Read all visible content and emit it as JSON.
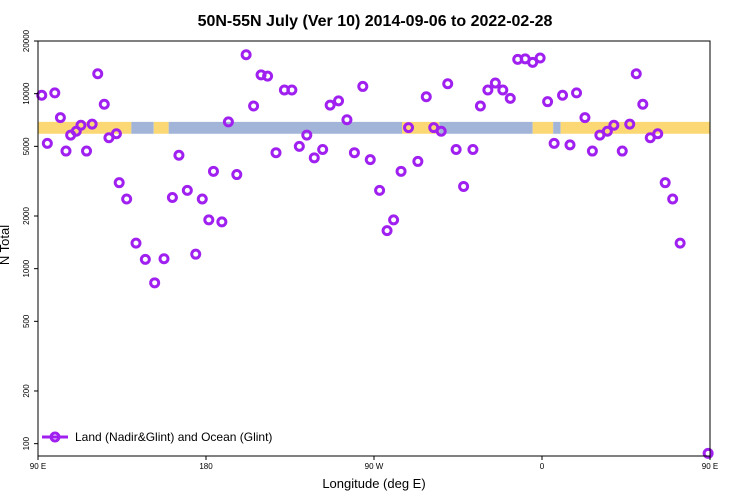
{
  "chart_data": {
    "type": "scatter",
    "title": "50N-55N July (Ver 10)   2014-09-06 to 2022-02-28",
    "xlabel": "Longitude (deg E)",
    "ylabel": "N Total",
    "y_scale": "log",
    "xlim": [
      90,
      450
    ],
    "ylim": [
      85,
      20000
    ],
    "x_ticks": [
      {
        "value": 90,
        "label": "90 E"
      },
      {
        "value": 180,
        "label": "180"
      },
      {
        "value": 270,
        "label": "90 W"
      },
      {
        "value": 360,
        "label": "0"
      },
      {
        "value": 450,
        "label": "90 E"
      },
      {
        "value": 540,
        "label": "180"
      }
    ],
    "y_ticks": [
      {
        "value": 100,
        "label": "100"
      },
      {
        "value": 200,
        "label": "200"
      },
      {
        "value": 500,
        "label": "500"
      },
      {
        "value": 1000,
        "label": "1000"
      },
      {
        "value": 2000,
        "label": "2000"
      },
      {
        "value": 5000,
        "label": "5000"
      },
      {
        "value": 10000,
        "label": "10000"
      },
      {
        "value": 20000,
        "label": "20000"
      }
    ],
    "colors": {
      "marker": "#a020f0",
      "land": "#fcd875",
      "ocean": "#a2b5d8"
    },
    "legend": {
      "placement": "bottom-left",
      "entries": [
        "Land (Nadir&Glint) and Ocean (Glint)"
      ]
    },
    "land_ocean_band": {
      "y_range": [
        5900,
        6900
      ],
      "segments": [
        {
          "type": "land",
          "x": [
            90,
            140
          ]
        },
        {
          "type": "ocean",
          "x": [
            140,
            152
          ]
        },
        {
          "type": "land",
          "x": [
            152,
            160
          ]
        },
        {
          "type": "ocean",
          "x": [
            160,
            285
          ]
        },
        {
          "type": "land",
          "x": [
            285,
            305
          ]
        },
        {
          "type": "ocean",
          "x": [
            305,
            355
          ]
        },
        {
          "type": "land",
          "x": [
            355,
            366
          ]
        },
        {
          "type": "ocean",
          "x": [
            366,
            370
          ]
        },
        {
          "type": "land",
          "x": [
            370,
            532
          ]
        },
        {
          "type": "ocean",
          "x": [
            532,
            544
          ]
        },
        {
          "type": "land",
          "x": [
            544,
            555
          ]
        },
        {
          "type": "ocean",
          "x": [
            555,
            630
          ]
        }
      ]
    },
    "series": [
      {
        "points": [
          [
            92,
            9800
          ],
          [
            95,
            5200
          ],
          [
            99,
            10100
          ],
          [
            102,
            7300
          ],
          [
            105,
            4700
          ],
          [
            107.5,
            5800
          ],
          [
            110.5,
            6100
          ],
          [
            113,
            6600
          ],
          [
            116,
            4700
          ],
          [
            119,
            6700
          ],
          [
            122,
            13000
          ],
          [
            125.5,
            8700
          ],
          [
            128,
            5600
          ],
          [
            132,
            5900
          ],
          [
            133.5,
            3100
          ],
          [
            137.5,
            2500
          ],
          [
            142.5,
            1400
          ],
          [
            147.5,
            1130
          ],
          [
            152.5,
            830
          ],
          [
            157.5,
            1140
          ],
          [
            162,
            2550
          ],
          [
            165.5,
            4450
          ],
          [
            170,
            2800
          ],
          [
            174.5,
            1210
          ],
          [
            178,
            2500
          ],
          [
            181.5,
            1900
          ],
          [
            184,
            3600
          ],
          [
            188.5,
            1850
          ],
          [
            192,
            6900
          ],
          [
            196.5,
            3450
          ],
          [
            201.5,
            16700
          ],
          [
            205.5,
            8500
          ],
          [
            209.5,
            12800
          ],
          [
            213,
            12600
          ],
          [
            217.5,
            4600
          ],
          [
            222,
            10500
          ],
          [
            226,
            10500
          ],
          [
            230,
            5000
          ],
          [
            234,
            5800
          ],
          [
            238,
            4300
          ],
          [
            242.5,
            4800
          ],
          [
            246.5,
            8600
          ],
          [
            251,
            9100
          ],
          [
            255.5,
            7100
          ],
          [
            259.5,
            4600
          ],
          [
            264,
            11000
          ],
          [
            268,
            4200
          ],
          [
            273,
            2800
          ],
          [
            277,
            1650
          ],
          [
            280.5,
            1900
          ],
          [
            284.5,
            3600
          ],
          [
            288.5,
            6400
          ],
          [
            293.5,
            4100
          ],
          [
            298,
            9600
          ],
          [
            302,
            6400
          ],
          [
            306,
            6100
          ],
          [
            309.5,
            11400
          ],
          [
            314,
            4800
          ],
          [
            318,
            2950
          ],
          [
            323,
            4800
          ],
          [
            327,
            8500
          ],
          [
            331,
            10500
          ],
          [
            335,
            11500
          ],
          [
            339,
            10500
          ],
          [
            343,
            9400
          ],
          [
            347,
            15700
          ],
          [
            351,
            15800
          ],
          [
            355,
            15100
          ],
          [
            359,
            16000
          ],
          [
            363,
            9000
          ],
          [
            366.5,
            5200
          ],
          [
            371,
            9800
          ],
          [
            375,
            5100
          ],
          [
            378.5,
            10100
          ],
          [
            383,
            7300
          ],
          [
            387,
            4700
          ],
          [
            391,
            5800
          ],
          [
            395,
            6100
          ],
          [
            398.5,
            6600
          ],
          [
            403,
            4700
          ],
          [
            407,
            6700
          ],
          [
            410.5,
            13000
          ],
          [
            414,
            8700
          ],
          [
            418,
            5600
          ],
          [
            422,
            5900
          ],
          [
            426,
            3100
          ],
          [
            430,
            2500
          ],
          [
            434,
            1400
          ],
          [
            449,
            88
          ]
        ]
      }
    ]
  }
}
